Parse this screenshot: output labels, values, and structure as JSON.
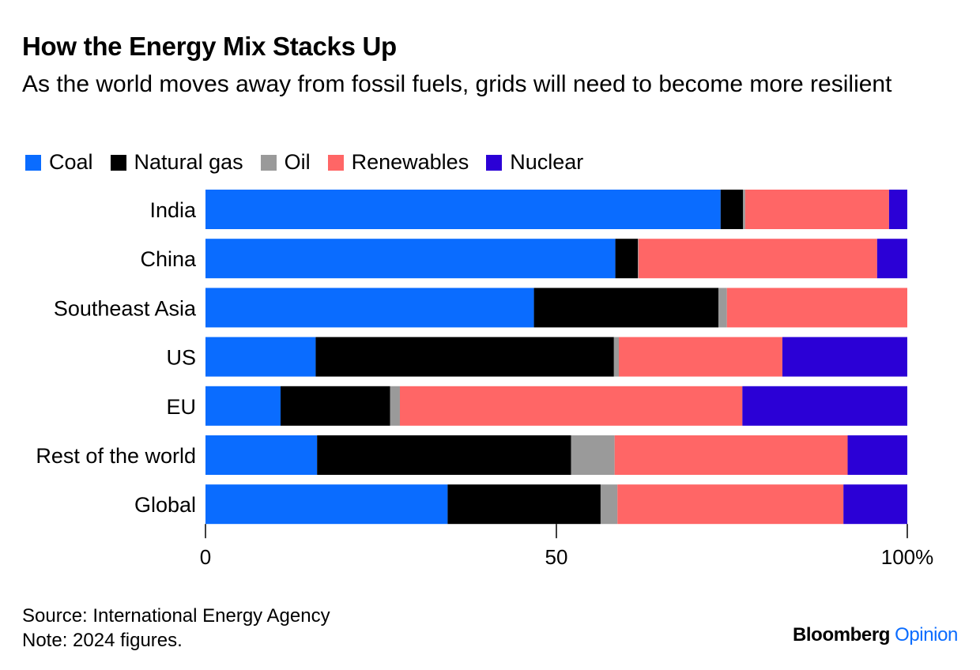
{
  "colors": {
    "Coal": "#0a6cff",
    "Natural gas": "#000000",
    "Oil": "#9a9a9a",
    "Renewables": "#ff6666",
    "Nuclear": "#2b00d6"
  },
  "footer": {
    "source": "Source: International Energy Agency",
    "note": "Note: 2024 figures."
  },
  "brand": {
    "name": "Bloomberg",
    "accent": "Opinion"
  },
  "chart_data": {
    "type": "bar",
    "orientation": "horizontal",
    "stacked": true,
    "title": "How the Energy Mix Stacks Up",
    "subtitle": "As the world moves away from fossil fuels, grids will need to become more resilient",
    "xlabel": "",
    "ylabel": "",
    "xlim": [
      0,
      100
    ],
    "x_ticks": [
      "0",
      "50",
      "100%"
    ],
    "legend_position": "top-left",
    "grid": false,
    "categories": [
      "India",
      "China",
      "Southeast Asia",
      "US",
      "EU",
      "Rest of the world",
      "Global"
    ],
    "series": [
      {
        "name": "Coal",
        "values": [
          73.4,
          58.4,
          46.8,
          15.7,
          10.7,
          15.9,
          34.5
        ]
      },
      {
        "name": "Natural gas",
        "values": [
          3.2,
          3.2,
          26.3,
          42.5,
          15.6,
          36.2,
          21.8
        ]
      },
      {
        "name": "Oil",
        "values": [
          0.3,
          0.1,
          1.2,
          0.7,
          1.4,
          6.2,
          2.4
        ]
      },
      {
        "name": "Renewables",
        "values": [
          20.5,
          34.0,
          25.7,
          23.3,
          48.8,
          33.2,
          32.2
        ]
      },
      {
        "name": "Nuclear",
        "values": [
          2.6,
          4.3,
          0.0,
          17.8,
          23.5,
          8.5,
          9.1
        ]
      }
    ]
  }
}
